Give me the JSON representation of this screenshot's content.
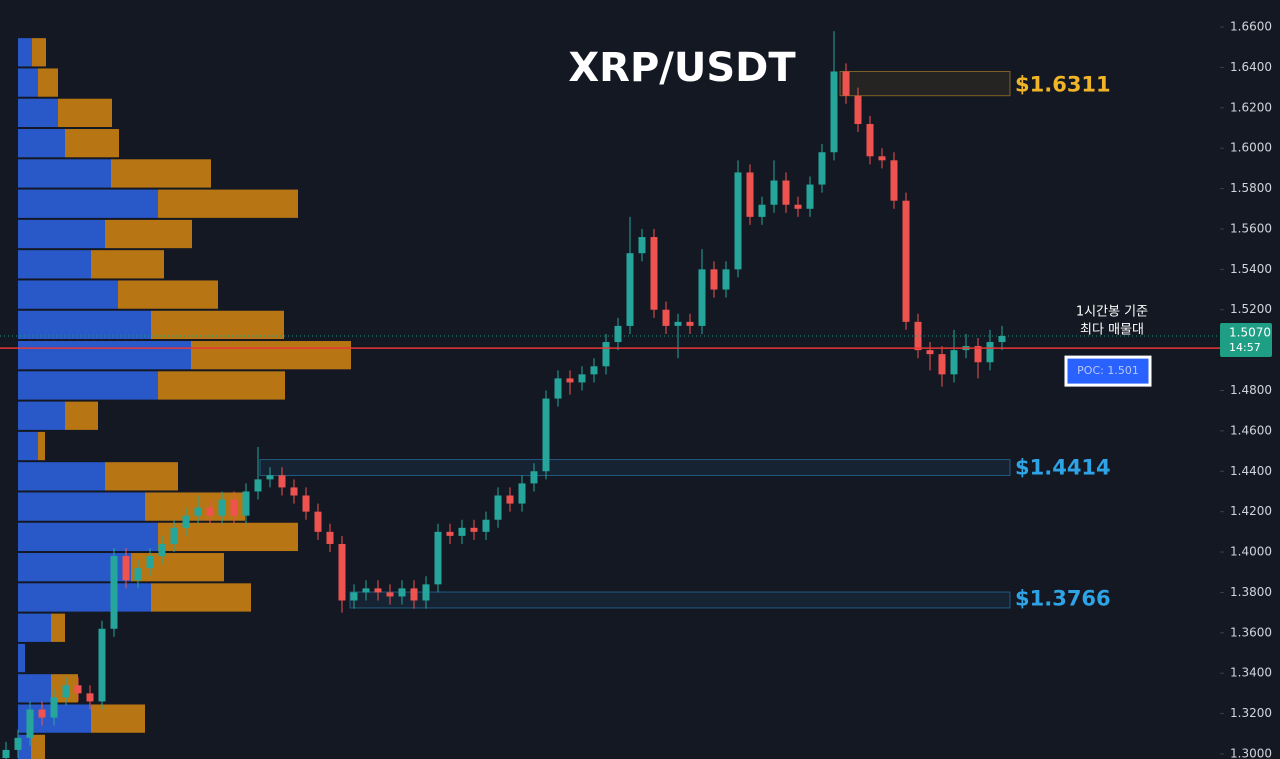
{
  "chart_data": {
    "type": "candlestick",
    "title": "XRP/USDT",
    "ylim": [
      1.2975,
      1.6734
    ],
    "yticks": [
      {
        "value": 1.3,
        "label": "1.3000"
      },
      {
        "value": 1.32,
        "label": "1.3200"
      },
      {
        "value": 1.34,
        "label": "1.3400"
      },
      {
        "value": 1.36,
        "label": "1.3600"
      },
      {
        "value": 1.38,
        "label": "1.3800"
      },
      {
        "value": 1.4,
        "label": "1.4000"
      },
      {
        "value": 1.42,
        "label": "1.4200"
      },
      {
        "value": 1.44,
        "label": "1.4400"
      },
      {
        "value": 1.46,
        "label": "1.4600"
      },
      {
        "value": 1.48,
        "label": "1.4800"
      },
      {
        "value": 1.5,
        "label": "1.5000"
      },
      {
        "value": 1.52,
        "label": "1.5200"
      },
      {
        "value": 1.54,
        "label": "1.5400"
      },
      {
        "value": 1.56,
        "label": "1.5600"
      },
      {
        "value": 1.58,
        "label": "1.5800"
      },
      {
        "value": 1.6,
        "label": "1.6000"
      },
      {
        "value": 1.62,
        "label": "1.6200"
      },
      {
        "value": 1.64,
        "label": "1.6400"
      },
      {
        "value": 1.66,
        "label": "1.6600"
      }
    ],
    "up_color": "#26a69a",
    "down_color": "#ef5350",
    "candles": [
      [
        1.298,
        1.306,
        1.294,
        1.302
      ],
      [
        1.302,
        1.312,
        1.298,
        1.308
      ],
      [
        1.308,
        1.326,
        1.304,
        1.322
      ],
      [
        1.322,
        1.326,
        1.314,
        1.318
      ],
      [
        1.318,
        1.332,
        1.314,
        1.328
      ],
      [
        1.328,
        1.338,
        1.324,
        1.334
      ],
      [
        1.334,
        1.338,
        1.326,
        1.33
      ],
      [
        1.33,
        1.334,
        1.322,
        1.326
      ],
      [
        1.326,
        1.366,
        1.322,
        1.362
      ],
      [
        1.362,
        1.402,
        1.358,
        1.398
      ],
      [
        1.398,
        1.402,
        1.382,
        1.386
      ],
      [
        1.386,
        1.396,
        1.382,
        1.392
      ],
      [
        1.392,
        1.402,
        1.388,
        1.398
      ],
      [
        1.398,
        1.408,
        1.394,
        1.404
      ],
      [
        1.404,
        1.416,
        1.4,
        1.412
      ],
      [
        1.412,
        1.422,
        1.408,
        1.418
      ],
      [
        1.418,
        1.428,
        1.414,
        1.422
      ],
      [
        1.422,
        1.426,
        1.414,
        1.418
      ],
      [
        1.418,
        1.43,
        1.414,
        1.426
      ],
      [
        1.426,
        1.43,
        1.414,
        1.418
      ],
      [
        1.418,
        1.434,
        1.414,
        1.43
      ],
      [
        1.43,
        1.452,
        1.426,
        1.436
      ],
      [
        1.436,
        1.442,
        1.432,
        1.438
      ],
      [
        1.438,
        1.442,
        1.428,
        1.432
      ],
      [
        1.432,
        1.436,
        1.424,
        1.428
      ],
      [
        1.428,
        1.432,
        1.416,
        1.42
      ],
      [
        1.42,
        1.424,
        1.406,
        1.41
      ],
      [
        1.41,
        1.414,
        1.4,
        1.404
      ],
      [
        1.404,
        1.408,
        1.37,
        1.376
      ],
      [
        1.376,
        1.384,
        1.372,
        1.38
      ],
      [
        1.38,
        1.386,
        1.376,
        1.382
      ],
      [
        1.382,
        1.386,
        1.376,
        1.38
      ],
      [
        1.38,
        1.384,
        1.374,
        1.378
      ],
      [
        1.378,
        1.386,
        1.374,
        1.382
      ],
      [
        1.382,
        1.386,
        1.372,
        1.376
      ],
      [
        1.376,
        1.388,
        1.372,
        1.384
      ],
      [
        1.384,
        1.414,
        1.38,
        1.41
      ],
      [
        1.41,
        1.414,
        1.404,
        1.408
      ],
      [
        1.408,
        1.416,
        1.404,
        1.412
      ],
      [
        1.412,
        1.416,
        1.406,
        1.41
      ],
      [
        1.41,
        1.42,
        1.406,
        1.416
      ],
      [
        1.416,
        1.432,
        1.412,
        1.428
      ],
      [
        1.428,
        1.432,
        1.42,
        1.424
      ],
      [
        1.424,
        1.438,
        1.42,
        1.434
      ],
      [
        1.434,
        1.444,
        1.43,
        1.44
      ],
      [
        1.44,
        1.48,
        1.436,
        1.476
      ],
      [
        1.476,
        1.49,
        1.472,
        1.486
      ],
      [
        1.486,
        1.49,
        1.478,
        1.484
      ],
      [
        1.484,
        1.492,
        1.48,
        1.488
      ],
      [
        1.488,
        1.496,
        1.484,
        1.492
      ],
      [
        1.492,
        1.508,
        1.488,
        1.504
      ],
      [
        1.504,
        1.516,
        1.5,
        1.512
      ],
      [
        1.512,
        1.566,
        1.508,
        1.548
      ],
      [
        1.548,
        1.56,
        1.544,
        1.556
      ],
      [
        1.556,
        1.56,
        1.516,
        1.52
      ],
      [
        1.52,
        1.524,
        1.508,
        1.512
      ],
      [
        1.512,
        1.518,
        1.496,
        1.514
      ],
      [
        1.514,
        1.518,
        1.508,
        1.512
      ],
      [
        1.512,
        1.55,
        1.508,
        1.54
      ],
      [
        1.54,
        1.544,
        1.526,
        1.53
      ],
      [
        1.53,
        1.544,
        1.526,
        1.54
      ],
      [
        1.54,
        1.594,
        1.536,
        1.588
      ],
      [
        1.588,
        1.592,
        1.562,
        1.566
      ],
      [
        1.566,
        1.576,
        1.562,
        1.572
      ],
      [
        1.572,
        1.594,
        1.568,
        1.584
      ],
      [
        1.584,
        1.588,
        1.568,
        1.572
      ],
      [
        1.572,
        1.576,
        1.566,
        1.57
      ],
      [
        1.57,
        1.586,
        1.566,
        1.582
      ],
      [
        1.582,
        1.602,
        1.578,
        1.598
      ],
      [
        1.598,
        1.658,
        1.594,
        1.638
      ],
      [
        1.638,
        1.642,
        1.622,
        1.626
      ],
      [
        1.626,
        1.63,
        1.608,
        1.612
      ],
      [
        1.612,
        1.616,
        1.592,
        1.596
      ],
      [
        1.596,
        1.6,
        1.59,
        1.594
      ],
      [
        1.594,
        1.598,
        1.57,
        1.574
      ],
      [
        1.574,
        1.578,
        1.51,
        1.514
      ],
      [
        1.514,
        1.518,
        1.496,
        1.5
      ],
      [
        1.5,
        1.504,
        1.49,
        1.498
      ],
      [
        1.498,
        1.502,
        1.482,
        1.488
      ],
      [
        1.488,
        1.51,
        1.484,
        1.5
      ],
      [
        1.5,
        1.508,
        1.496,
        1.502
      ],
      [
        1.502,
        1.506,
        1.486,
        1.494
      ],
      [
        1.494,
        1.51,
        1.49,
        1.504
      ],
      [
        1.504,
        1.512,
        1.5,
        1.507
      ]
    ],
    "volume_profile": {
      "bins": [
        1.295,
        1.31,
        1.325,
        1.34,
        1.355,
        1.37,
        1.385,
        1.4,
        1.415,
        1.43,
        1.445,
        1.46,
        1.475,
        1.49,
        1.505,
        1.52,
        1.535,
        1.55,
        1.565,
        1.58,
        1.595,
        1.61,
        1.625,
        1.64,
        1.655
      ],
      "up": [
        13,
        73,
        33,
        7,
        33,
        133,
        113,
        140,
        127,
        87,
        20,
        47,
        140,
        173,
        133,
        100,
        73,
        87,
        140,
        93,
        47,
        40,
        20,
        14
      ],
      "down": [
        14,
        54,
        27,
        0,
        14,
        100,
        93,
        140,
        100,
        73,
        7,
        33,
        127,
        160,
        133,
        100,
        73,
        87,
        140,
        100,
        54,
        54,
        20,
        14
      ],
      "up_color": "#2b5fdb",
      "down_color": "#c98013"
    },
    "zones": [
      {
        "label": "$1.6311",
        "value": 1.6311,
        "low": 1.626,
        "high": 1.638,
        "color": "#f0b429"
      },
      {
        "label": "$1.4414",
        "value": 1.4414,
        "low": 1.4379,
        "high": 1.4458,
        "color": "#2ea3e6"
      },
      {
        "label": "$1.3766",
        "value": 1.3766,
        "low": 1.3723,
        "high": 1.3802,
        "color": "#2ea3e6"
      }
    ],
    "poc": {
      "value": 1.501,
      "label": "POC: 1.501",
      "color": "#e53935",
      "note_line1": "1시간봉 기준",
      "note_line2": "최다 매물대"
    },
    "last_price": {
      "value": 1.507,
      "label": "1.5070",
      "countdown": "14:57",
      "color": "#1e9e84"
    }
  }
}
